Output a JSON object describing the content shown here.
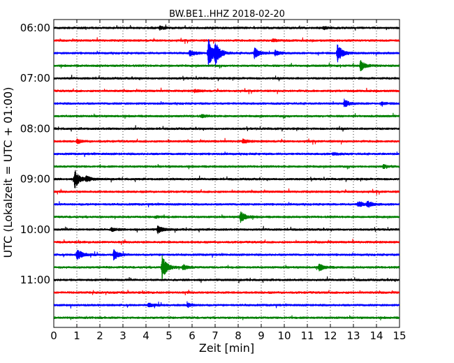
{
  "chart_data": {
    "type": "line",
    "title": "BW.BE1..HHZ 2018-02-20",
    "xlabel": "Zeit  [min]",
    "ylabel": "UTC (Lokalzeit = UTC + 01:00)",
    "xlim": [
      0,
      15
    ],
    "x_ticks": [
      "0",
      "1",
      "2",
      "3",
      "4",
      "5",
      "6",
      "7",
      "8",
      "9",
      "10",
      "11",
      "12",
      "13",
      "14",
      "15"
    ],
    "y_tick_labels": [
      "06:00",
      "07:00",
      "08:00",
      "09:00",
      "10:00",
      "11:00"
    ],
    "grid": "vertical dotted",
    "trace_colors": [
      "#000000",
      "#ff0000",
      "#0000ff",
      "#008000"
    ],
    "trace_count": 24,
    "trace_interval_min": 15,
    "events": [
      {
        "trace": 0,
        "x": 4.6,
        "amp": 0.25
      },
      {
        "trace": 0,
        "x": 11.7,
        "amp": 0.2
      },
      {
        "trace": 1,
        "x": 9.5,
        "amp": 0.2
      },
      {
        "trace": 2,
        "x": 5.9,
        "amp": 0.5
      },
      {
        "trace": 2,
        "x": 6.7,
        "amp": 2.3
      },
      {
        "trace": 2,
        "x": 7.0,
        "amp": 1.6
      },
      {
        "trace": 2,
        "x": 8.7,
        "amp": 0.9
      },
      {
        "trace": 2,
        "x": 9.6,
        "amp": 0.4
      },
      {
        "trace": 2,
        "x": 12.3,
        "amp": 1.5
      },
      {
        "trace": 3,
        "x": 13.3,
        "amp": 0.8
      },
      {
        "trace": 5,
        "x": 6.1,
        "amp": 0.2
      },
      {
        "trace": 6,
        "x": 12.6,
        "amp": 0.6
      },
      {
        "trace": 6,
        "x": 14.2,
        "amp": 0.2
      },
      {
        "trace": 7,
        "x": 6.4,
        "amp": 0.2
      },
      {
        "trace": 9,
        "x": 1.0,
        "amp": 0.3
      },
      {
        "trace": 9,
        "x": 8.2,
        "amp": 0.3
      },
      {
        "trace": 10,
        "x": 12.1,
        "amp": 0.2
      },
      {
        "trace": 11,
        "x": 14.3,
        "amp": 0.3
      },
      {
        "trace": 12,
        "x": 0.9,
        "amp": 1.6
      },
      {
        "trace": 12,
        "x": 1.4,
        "amp": 0.4
      },
      {
        "trace": 14,
        "x": 13.2,
        "amp": 0.5
      },
      {
        "trace": 14,
        "x": 13.6,
        "amp": 0.5
      },
      {
        "trace": 15,
        "x": 8.1,
        "amp": 0.9
      },
      {
        "trace": 15,
        "x": 4.4,
        "amp": 0.2
      },
      {
        "trace": 16,
        "x": 4.5,
        "amp": 0.6
      },
      {
        "trace": 16,
        "x": 2.5,
        "amp": 0.3
      },
      {
        "trace": 18,
        "x": 1.0,
        "amp": 1.0
      },
      {
        "trace": 18,
        "x": 2.6,
        "amp": 0.8
      },
      {
        "trace": 19,
        "x": 4.7,
        "amp": 2.0
      },
      {
        "trace": 19,
        "x": 5.6,
        "amp": 0.4
      },
      {
        "trace": 19,
        "x": 11.5,
        "amp": 0.6
      },
      {
        "trace": 22,
        "x": 4.1,
        "amp": 0.3
      },
      {
        "trace": 22,
        "x": 5.8,
        "amp": 0.3
      }
    ]
  }
}
